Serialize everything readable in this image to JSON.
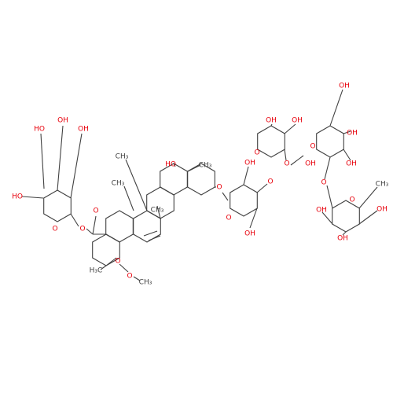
{
  "labels": [
    "HO",
    "OH",
    "OH",
    "HO",
    "O",
    "O",
    "O",
    "CH₃",
    "CH₃",
    "H₃C",
    "O",
    "O",
    "CH₃",
    "HO",
    "CH₃",
    "CH₃",
    "O",
    "OH",
    "O",
    "O",
    "OH",
    "OH",
    "OH",
    "O",
    "O",
    "OH",
    "OH",
    "O",
    "OH",
    "OH",
    "O",
    "O",
    "CH₃",
    "OH",
    "OH",
    "OH"
  ]
}
